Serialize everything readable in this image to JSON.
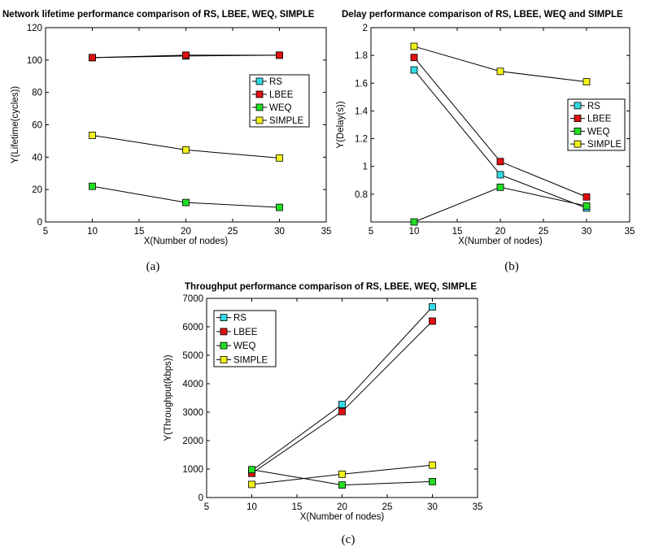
{
  "colors": {
    "RS": "#33d9e6",
    "LBEE": "#e01010",
    "WEQ": "#22dd22",
    "SIMPLE": "#f2f21a",
    "line": "#000000"
  },
  "chart_data": [
    {
      "type": "line",
      "id": "a",
      "title": "Network lifetime performance comparison of RS, LBEE, WEQ, SIMPLE",
      "xlabel": "X(Number of nodes)",
      "ylabel": "Y(Lifetime(cycles))",
      "caption": "(a)",
      "xlim": [
        5,
        35
      ],
      "ylim": [
        0,
        120
      ],
      "xticks": [
        5,
        10,
        15,
        20,
        25,
        30,
        35
      ],
      "yticks": [
        0,
        20,
        40,
        60,
        80,
        100,
        120
      ],
      "legend": "center-right",
      "x": [
        10,
        20,
        30
      ],
      "series": [
        {
          "name": "RS",
          "values": [
            101.5,
            102.5,
            103
          ]
        },
        {
          "name": "LBEE",
          "values": [
            101.5,
            103,
            103
          ]
        },
        {
          "name": "WEQ",
          "values": [
            22,
            12,
            9
          ]
        },
        {
          "name": "SIMPLE",
          "values": [
            53.5,
            44.5,
            39.5
          ]
        }
      ]
    },
    {
      "type": "line",
      "id": "b",
      "title": "Delay performance comparison of RS, LBEE, WEQ and SIMPLE",
      "xlabel": "X(Number of nodes)",
      "ylabel": "Y(Delay(s))",
      "caption": "(b)",
      "xlim": [
        5,
        35
      ],
      "ylim": [
        0.6,
        2
      ],
      "xticks": [
        5,
        10,
        15,
        20,
        25,
        30,
        35
      ],
      "yticks": [
        0.8,
        1,
        1.2,
        1.4,
        1.6,
        1.8,
        2
      ],
      "legend": "center-right",
      "x": [
        10,
        20,
        30
      ],
      "series": [
        {
          "name": "RS",
          "values": [
            1.695,
            0.94,
            0.7
          ]
        },
        {
          "name": "LBEE",
          "values": [
            1.785,
            1.035,
            0.78
          ]
        },
        {
          "name": "WEQ",
          "values": [
            0.6,
            0.85,
            0.715
          ]
        },
        {
          "name": "SIMPLE",
          "values": [
            1.865,
            1.685,
            1.61
          ]
        }
      ]
    },
    {
      "type": "line",
      "id": "c",
      "title": "Throughput performance comparison of RS, LBEE, WEQ, SIMPLE",
      "xlabel": "X(Number of nodes)",
      "ylabel": "Y(Throughput(kbps))",
      "caption": "(c)",
      "xlim": [
        5,
        35
      ],
      "ylim": [
        0,
        7000
      ],
      "xticks": [
        5,
        10,
        15,
        20,
        25,
        30,
        35
      ],
      "yticks": [
        0,
        1000,
        2000,
        3000,
        4000,
        5000,
        6000,
        7000
      ],
      "legend": "top-left",
      "x": [
        10,
        20,
        30
      ],
      "series": [
        {
          "name": "RS",
          "values": [
            950,
            3270,
            6700
          ]
        },
        {
          "name": "LBEE",
          "values": [
            850,
            3020,
            6200
          ]
        },
        {
          "name": "WEQ",
          "values": [
            980,
            440,
            560
          ]
        },
        {
          "name": "SIMPLE",
          "values": [
            460,
            820,
            1140
          ]
        }
      ]
    }
  ]
}
